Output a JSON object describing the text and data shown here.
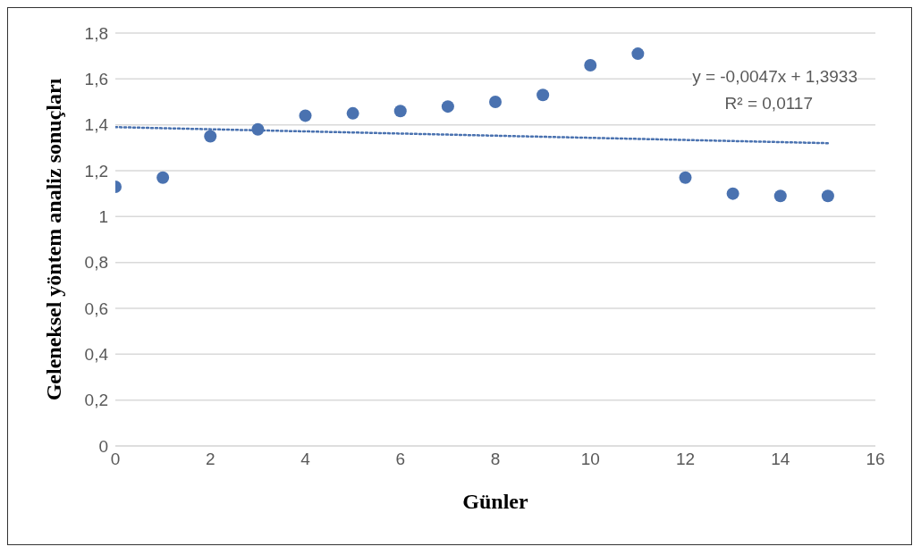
{
  "chart_data": {
    "type": "scatter",
    "xlabel": "Günler",
    "ylabel": "Geleneksel yöntem analiz sonuçları",
    "x": [
      0,
      1,
      2,
      3,
      4,
      5,
      6,
      7,
      8,
      9,
      10,
      11,
      12,
      13,
      14,
      15
    ],
    "series": [
      {
        "color": "#4a72b0",
        "marker": "circle",
        "values": [
          1.13,
          1.17,
          1.35,
          1.38,
          1.44,
          1.45,
          1.46,
          1.48,
          1.5,
          1.53,
          1.66,
          1.71,
          1.17,
          1.1,
          1.09,
          1.09
        ]
      },
      {
        "type": "line",
        "color": "#4a72b0",
        "line_style": "dotted",
        "marker": "none",
        "x": [
          0,
          15
        ],
        "values": [
          1.39,
          1.32
        ]
      }
    ],
    "xlim": [
      0,
      16
    ],
    "xticks": [
      0,
      2,
      4,
      6,
      8,
      10,
      12,
      14,
      16
    ],
    "ylim": [
      0,
      1.8
    ],
    "yticks": [
      0,
      {
        "value": 0.2,
        "label": "0,2"
      },
      {
        "value": 0.4,
        "label": "0,4"
      },
      {
        "value": 0.6,
        "label": "0,6"
      },
      {
        "value": 0.8,
        "label": "0,8"
      },
      1,
      {
        "value": 1.2,
        "label": "1,2"
      },
      {
        "value": 1.4,
        "label": "1,4"
      },
      {
        "value": 1.6,
        "label": "1,6"
      },
      {
        "value": 1.8,
        "label": "1,8"
      }
    ],
    "grid": "y",
    "legend": false,
    "annotations": [
      "y = -0,0047x + 1,3933",
      "R² = 0,0117"
    ]
  }
}
